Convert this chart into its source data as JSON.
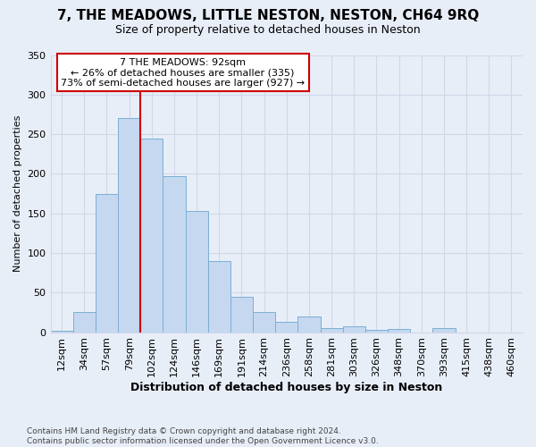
{
  "title_line1": "7, THE MEADOWS, LITTLE NESTON, NESTON, CH64 9RQ",
  "title_line2": "Size of property relative to detached houses in Neston",
  "xlabel": "Distribution of detached houses by size in Neston",
  "ylabel": "Number of detached properties",
  "footnote": "Contains HM Land Registry data © Crown copyright and database right 2024.\nContains public sector information licensed under the Open Government Licence v3.0.",
  "bar_labels": [
    "12sqm",
    "34sqm",
    "57sqm",
    "79sqm",
    "102sqm",
    "124sqm",
    "146sqm",
    "169sqm",
    "191sqm",
    "214sqm",
    "236sqm",
    "258sqm",
    "281sqm",
    "303sqm",
    "326sqm",
    "348sqm",
    "370sqm",
    "393sqm",
    "415sqm",
    "438sqm",
    "460sqm"
  ],
  "bar_values": [
    2,
    25,
    175,
    270,
    245,
    197,
    153,
    90,
    45,
    25,
    13,
    20,
    5,
    7,
    3,
    4,
    0,
    5,
    0,
    0,
    0
  ],
  "bar_color": "#c5d8f0",
  "bar_edge_color": "#7bafd4",
  "grid_color": "#d0d8e8",
  "background_color": "#e8eef8",
  "vline_x": 3.5,
  "vline_color": "#cc0000",
  "annotation_text": "7 THE MEADOWS: 92sqm\n← 26% of detached houses are smaller (335)\n73% of semi-detached houses are larger (927) →",
  "annotation_box_color": "#ffffff",
  "annotation_box_edge": "#cc0000",
  "ylim": [
    0,
    350
  ],
  "yticks": [
    0,
    50,
    100,
    150,
    200,
    250,
    300,
    350
  ],
  "title_fontsize": 11,
  "subtitle_fontsize": 9,
  "xlabel_fontsize": 9,
  "ylabel_fontsize": 8,
  "tick_fontsize": 8,
  "annotation_fontsize": 8,
  "footnote_fontsize": 6.5
}
